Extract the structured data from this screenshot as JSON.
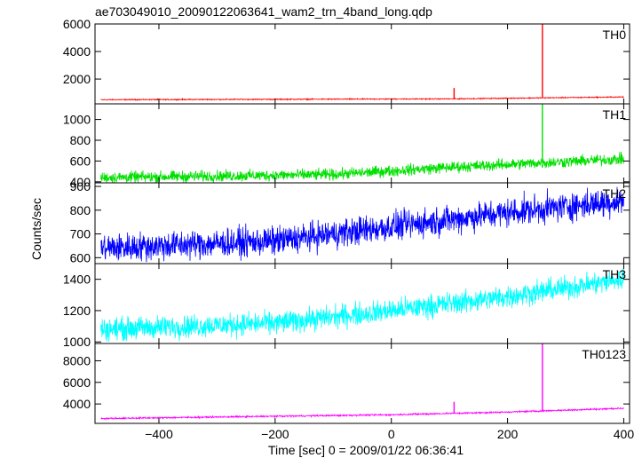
{
  "chart_data": {
    "type": "line",
    "title": "ae703049010_20090122063641_wam2_trn_4band_long.qdp",
    "xlabel": "Time [sec] 0 = 2009/01/22 06:36:41",
    "ylabel": "Counts/sec",
    "xlim": [
      -510,
      410
    ],
    "xticks": [
      -400,
      -200,
      0,
      200,
      400
    ],
    "xtick_labels": [
      "−400",
      "−200",
      "0",
      "200",
      "400"
    ],
    "grid": false,
    "panels": [
      {
        "name": "TH0",
        "color": "#ff0000",
        "ylim": [
          200,
          6000
        ],
        "yticks": [
          2000,
          4000,
          6000
        ],
        "ytick_labels": [
          "2000",
          "4000",
          "6000"
        ],
        "baseline": [
          [
            -500,
            500
          ],
          [
            100,
            560
          ],
          [
            400,
            700
          ]
        ],
        "noise": 30,
        "spikes": [
          [
            108,
            1350
          ],
          [
            260,
            6000
          ]
        ]
      },
      {
        "name": "TH1",
        "color": "#00e000",
        "ylim": [
          390,
          1150
        ],
        "yticks": [
          400,
          600,
          800,
          1000
        ],
        "ytick_labels": [
          "400",
          "600",
          "800",
          "1000"
        ],
        "baseline": [
          [
            -500,
            440
          ],
          [
            -100,
            470
          ],
          [
            100,
            540
          ],
          [
            400,
            620
          ]
        ],
        "noise": 45,
        "spikes": [
          [
            260,
            1170
          ]
        ]
      },
      {
        "name": "TH2",
        "color": "#0000ff",
        "ylim": [
          575,
          915
        ],
        "yticks": [
          600,
          700,
          800,
          900
        ],
        "ytick_labels": [
          "600",
          "700",
          "800",
          "900"
        ],
        "baseline": [
          [
            -500,
            640
          ],
          [
            -200,
            670
          ],
          [
            0,
            730
          ],
          [
            200,
            790
          ],
          [
            400,
            840
          ]
        ],
        "noise": 50,
        "spikes": []
      },
      {
        "name": "TH3",
        "color": "#00ffff",
        "ylim": [
          990,
          1500
        ],
        "yticks": [
          1000,
          1200,
          1400
        ],
        "ytick_labels": [
          "1000",
          "1200",
          "1400"
        ],
        "baseline": [
          [
            -500,
            1080
          ],
          [
            -200,
            1120
          ],
          [
            0,
            1200
          ],
          [
            200,
            1290
          ],
          [
            400,
            1400
          ]
        ],
        "noise": 60,
        "spikes": []
      },
      {
        "name": "TH0123",
        "color": "#ff00ff",
        "ylim": [
          2200,
          9600
        ],
        "yticks": [
          4000,
          6000,
          8000
        ],
        "ytick_labels": [
          "4000",
          "6000",
          "8000"
        ],
        "baseline": [
          [
            -500,
            2650
          ],
          [
            0,
            3000
          ],
          [
            200,
            3250
          ],
          [
            400,
            3600
          ]
        ],
        "noise": 60,
        "spikes": [
          [
            108,
            4200
          ],
          [
            260,
            9600
          ]
        ]
      }
    ]
  }
}
